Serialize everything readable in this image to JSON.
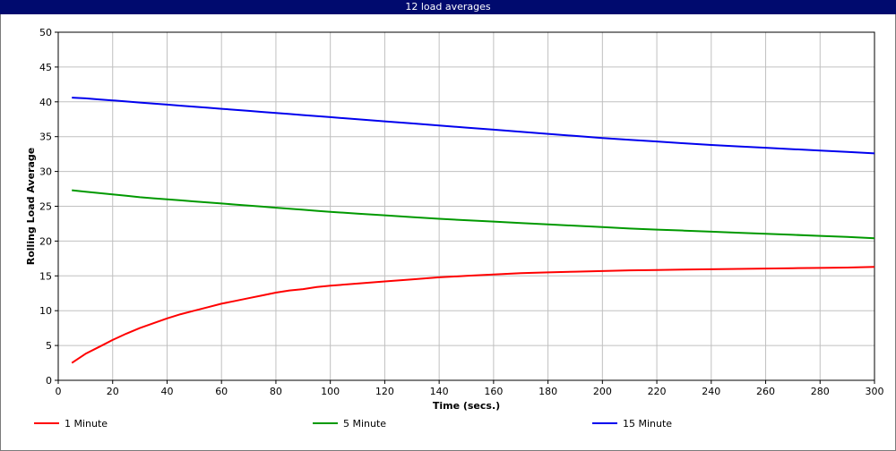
{
  "window": {
    "title": "12 load averages"
  },
  "chart_data": {
    "type": "line",
    "title": "12 load averages",
    "xlabel": "Time (secs.)",
    "ylabel": "Rolling Load Average",
    "xlim": [
      0,
      300
    ],
    "ylim": [
      0,
      50
    ],
    "xticks": [
      0,
      20,
      40,
      60,
      80,
      100,
      120,
      140,
      160,
      180,
      200,
      220,
      240,
      260,
      280,
      300
    ],
    "yticks": [
      0,
      5,
      10,
      15,
      20,
      25,
      30,
      35,
      40,
      45,
      50
    ],
    "grid": true,
    "legend_position": "bottom",
    "x": [
      5,
      10,
      15,
      20,
      25,
      30,
      35,
      40,
      45,
      50,
      55,
      60,
      65,
      70,
      75,
      80,
      85,
      90,
      95,
      100,
      110,
      120,
      130,
      140,
      150,
      160,
      170,
      180,
      190,
      200,
      210,
      220,
      230,
      240,
      250,
      260,
      270,
      280,
      290,
      300
    ],
    "series": [
      {
        "name": "1 Minute",
        "color": "#ff0000",
        "values": [
          2.5,
          3.8,
          4.8,
          5.8,
          6.7,
          7.5,
          8.2,
          8.9,
          9.5,
          10.0,
          10.5,
          11.0,
          11.4,
          11.8,
          12.2,
          12.6,
          12.9,
          13.1,
          13.4,
          13.6,
          13.9,
          14.2,
          14.5,
          14.8,
          15.0,
          15.2,
          15.4,
          15.5,
          15.6,
          15.7,
          15.8,
          15.85,
          15.9,
          15.95,
          16.0,
          16.05,
          16.1,
          16.15,
          16.2,
          16.3
        ]
      },
      {
        "name": "5 Minute",
        "color": "#009900",
        "values": [
          27.3,
          27.1,
          26.9,
          26.7,
          26.5,
          26.3,
          26.15,
          26.0,
          25.85,
          25.7,
          25.55,
          25.4,
          25.25,
          25.1,
          24.95,
          24.8,
          24.65,
          24.5,
          24.35,
          24.2,
          23.95,
          23.7,
          23.45,
          23.2,
          23.0,
          22.8,
          22.6,
          22.4,
          22.2,
          22.0,
          21.8,
          21.65,
          21.5,
          21.35,
          21.2,
          21.05,
          20.9,
          20.75,
          20.6,
          20.4
        ]
      },
      {
        "name": "15 Minute",
        "color": "#0000ee",
        "values": [
          40.6,
          40.5,
          40.35,
          40.2,
          40.05,
          39.9,
          39.75,
          39.6,
          39.45,
          39.3,
          39.15,
          39.0,
          38.85,
          38.7,
          38.55,
          38.4,
          38.25,
          38.1,
          37.95,
          37.8,
          37.5,
          37.2,
          36.9,
          36.6,
          36.3,
          36.0,
          35.7,
          35.4,
          35.1,
          34.8,
          34.55,
          34.3,
          34.05,
          33.8,
          33.6,
          33.4,
          33.2,
          33.0,
          32.8,
          32.6
        ]
      }
    ]
  }
}
